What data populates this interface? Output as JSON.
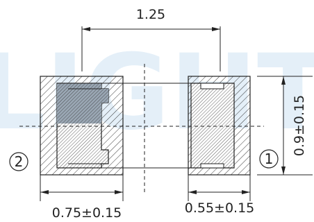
{
  "watermark": "LIGHT",
  "dimensions": {
    "pitch": "1.25",
    "height": "0.9±0.15",
    "left_pad_width": "0.75±0.15",
    "right_pad_width": "0.55±0.15"
  },
  "pins": {
    "left": "2",
    "right": "1"
  },
  "colors": {
    "line": "#222222",
    "watermark": "#cfe3f3",
    "fill_dark": "#9aa7b4"
  }
}
